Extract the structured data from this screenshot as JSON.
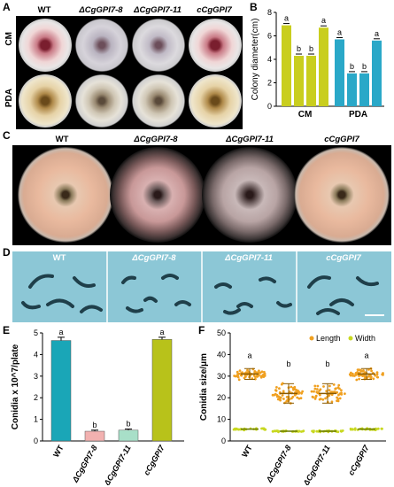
{
  "panels": {
    "A": {
      "label": "A",
      "strains": [
        "WT",
        "ΔCgGPI7-8",
        "ΔCgGPI7-11",
        "cCgGPI7"
      ],
      "rows": [
        "CM",
        "PDA"
      ]
    },
    "B": {
      "label": "B"
    },
    "C": {
      "label": "C",
      "strains": [
        "WT",
        "ΔCgGPI7-8",
        "ΔCgGPI7-11",
        "cCgGPI7"
      ]
    },
    "D": {
      "label": "D",
      "strains": [
        "WT",
        "ΔCgGPI7-8",
        "ΔCgGPI7-11",
        "cCgGPI7"
      ]
    },
    "E": {
      "label": "E"
    },
    "F": {
      "label": "F"
    }
  },
  "colors": {
    "wt": "#1aa6b7",
    "mutant": "#f2b1b0",
    "mutant2": "#a8dfc8",
    "comp": "#b8c21a",
    "olive": "#c9ce1e",
    "teal": "#2aa8c8",
    "length": "#f0a020",
    "width": "#c8d820"
  },
  "chart_data": [
    {
      "id": "B",
      "type": "bar",
      "ylabel": "Colony diameter(cm)",
      "groups": [
        "CM",
        "PDA"
      ],
      "ylim": [
        0,
        8
      ],
      "yticks": [
        0,
        2,
        4,
        6,
        8
      ],
      "series_values": {
        "CM": [
          6.9,
          4.3,
          4.3,
          6.7
        ],
        "PDA": [
          5.7,
          2.8,
          2.8,
          5.6
        ]
      },
      "group_colors": {
        "CM": "#c9ce1e",
        "PDA": "#2aa8c8"
      },
      "letters": {
        "CM": [
          "a",
          "b",
          "b",
          "a"
        ],
        "PDA": [
          "a",
          "b",
          "b",
          "a"
        ]
      }
    },
    {
      "id": "E",
      "type": "bar",
      "ylabel": "Conidia x 10^7/plate",
      "categories": [
        "WT",
        "ΔCgGPI7-8",
        "ΔCgGPI7-11",
        "cCgGPI7"
      ],
      "values": [
        4.65,
        0.45,
        0.5,
        4.7
      ],
      "errors": [
        0.15,
        0.05,
        0.05,
        0.1
      ],
      "letters": [
        "a",
        "b",
        "b",
        "a"
      ],
      "ylim": [
        0,
        5
      ],
      "yticks": [
        0,
        1,
        2,
        3,
        4,
        5
      ],
      "bar_colors": [
        "#1aa6b7",
        "#f2b1b0",
        "#a8dfc8",
        "#b8c21a"
      ]
    },
    {
      "id": "F",
      "type": "scatter",
      "ylabel": "Conidia size/μm",
      "categories": [
        "WT",
        "ΔCgGPI7-8",
        "ΔCgGPI7-11",
        "cCgGPI7"
      ],
      "legend": [
        "Length",
        "Width"
      ],
      "legend_placement": "top-right",
      "ylim": [
        0,
        50
      ],
      "yticks": [
        0,
        10,
        20,
        30,
        40,
        50
      ],
      "length_mean": [
        31,
        22,
        22,
        31
      ],
      "length_sd": [
        2.5,
        4.5,
        4.5,
        2.5
      ],
      "width_mean": [
        5.5,
        4.5,
        4.5,
        5.5
      ],
      "width_sd": [
        0.6,
        0.5,
        0.5,
        0.6
      ],
      "letters": [
        "a",
        "b",
        "b",
        "a"
      ]
    }
  ]
}
